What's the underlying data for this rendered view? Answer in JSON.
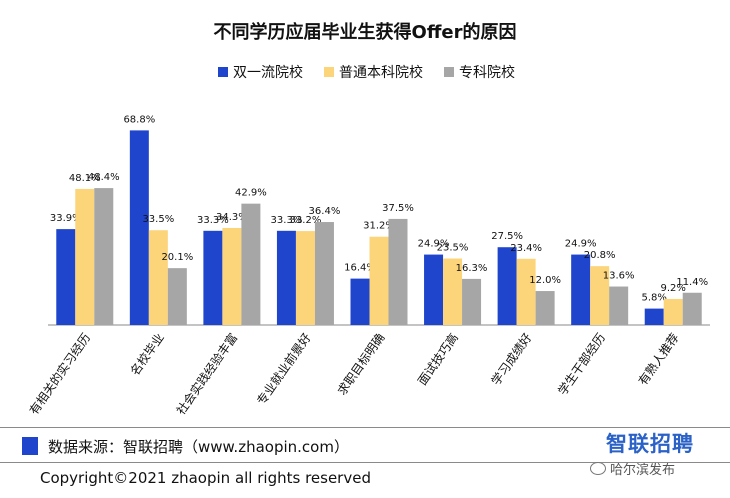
{
  "chart_data": {
    "type": "bar",
    "title": "不同学历应届毕业生获得Offer的原因",
    "categories": [
      "有相关的实习经历",
      "名校毕业",
      "社会实践经验丰富",
      "专业就业前景好",
      "求职目标明确",
      "面试技巧高",
      "学习成绩好",
      "学生干部经历",
      "有熟人推荐"
    ],
    "series": [
      {
        "name": "双一流院校",
        "color": "#1F45CC",
        "values": [
          33.9,
          68.8,
          33.3,
          33.3,
          16.4,
          24.9,
          27.5,
          24.9,
          5.8
        ]
      },
      {
        "name": "普通本科院校",
        "color": "#FCD47A",
        "values": [
          48.1,
          33.5,
          34.3,
          33.2,
          31.2,
          23.5,
          23.4,
          20.8,
          9.2
        ]
      },
      {
        "name": "专科院校",
        "color": "#A6A6A6",
        "values": [
          48.4,
          20.1,
          42.9,
          36.4,
          37.5,
          16.3,
          12.0,
          13.6,
          11.4
        ]
      }
    ],
    "value_suffix": "%",
    "ylim": [
      0,
      70
    ],
    "grid": false,
    "legend_position": "top-center"
  },
  "footer": {
    "source": "数据来源：智联招聘（www.zhaopin.com）",
    "source_color": "#1F45CC",
    "copyright": "Copyright©2021 zhaopin all rights reserved",
    "brand": "智联招聘",
    "brand_color": "#2B62C8",
    "watermark": "哈尔滨发布",
    "watermark_icon": "wechat-icon"
  }
}
